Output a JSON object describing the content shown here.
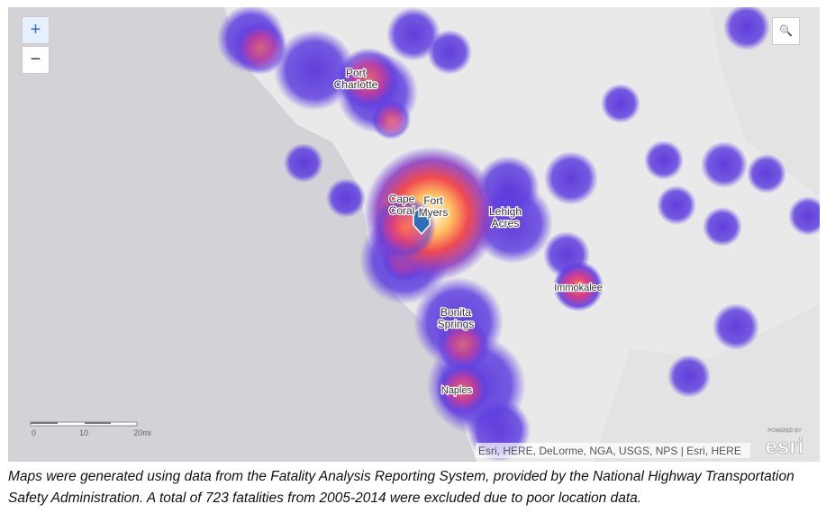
{
  "map": {
    "zoom_in": "+",
    "zoom_out": "−",
    "search": "🔍",
    "labels": [
      "Port Charlotte",
      "Cape Coral",
      "Fort Myers",
      "Lehigh Acres",
      "Immokalee",
      "Bonita Springs",
      "Naples"
    ],
    "scale": [
      "0",
      "10",
      "20mi"
    ],
    "attribution": "Esri, HERE, DeLorme, NGA, USGS, NPS | Esri, HERE",
    "powered_by": "POWERED BY",
    "logo": "esri"
  },
  "caption": "Maps were generated using data from the Fatality Analysis Reporting System, provided by the National Highway Transportation Safety Administration. A total of 723 fatalities from 2005-2014 were excluded due to poor location data."
}
